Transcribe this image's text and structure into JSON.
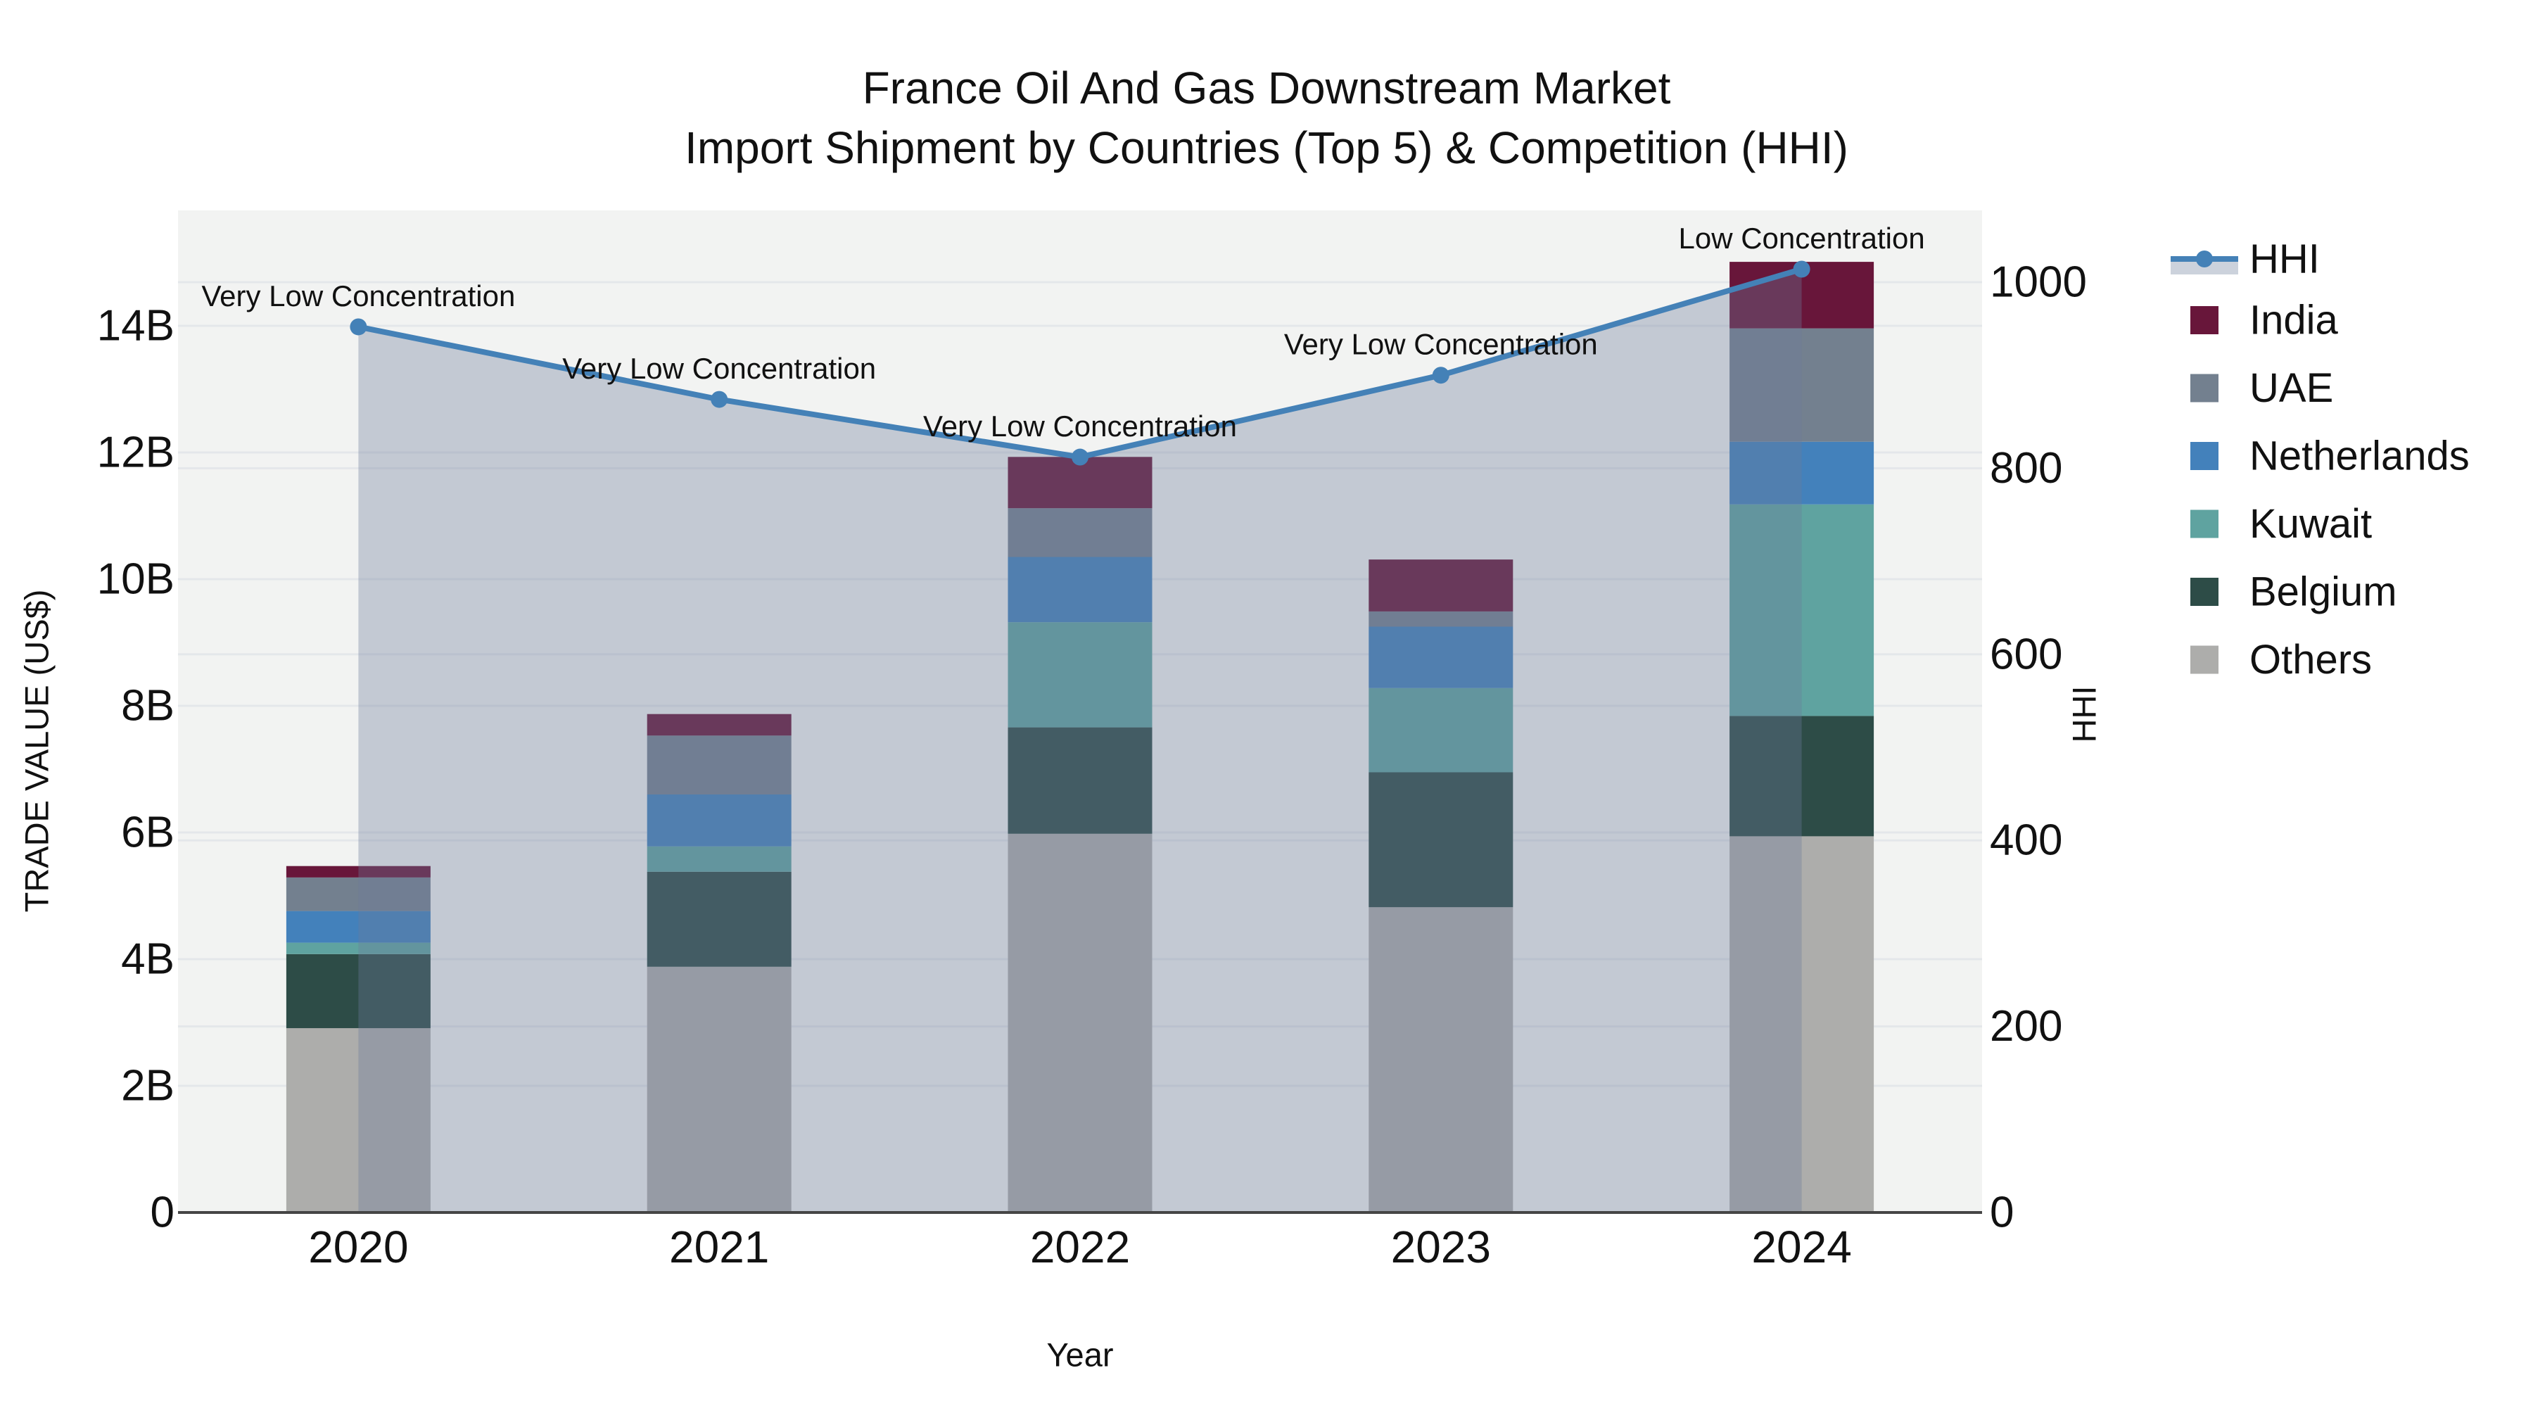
{
  "title": {
    "line1": "France Oil And Gas Downstream Market",
    "line2": "Import Shipment by Countries (Top 5) & Competition (HHI)"
  },
  "axis_titles": {
    "x": "Year",
    "y_left": "TRADE VALUE (US$)",
    "y_right": "HHI"
  },
  "legend": {
    "items": [
      "HHI",
      "India",
      "UAE",
      "Netherlands",
      "Kuwait",
      "Belgium",
      "Others"
    ]
  },
  "colors": {
    "hhi_line": "#4481b7",
    "hhi_area_fill": "rgba(108,124,155,0.35)",
    "hhi_legend_band": "#ccd2dc",
    "plot_background": "#f2f3f2",
    "gridline": "#e4e7ea",
    "axis_line": "#454545"
  },
  "chart_data": {
    "type": "bar",
    "subtype": "stacked-bars-with-line-overlay",
    "categories": [
      "2020",
      "2021",
      "2022",
      "2023",
      "2024"
    ],
    "bar_value_unit": "billions of US$",
    "series": [
      {
        "name": "India",
        "color": "#68163a",
        "values": [
          0.18,
          0.34,
          0.81,
          0.82,
          1.05
        ]
      },
      {
        "name": "UAE",
        "color": "#73808f",
        "values": [
          0.53,
          0.93,
          0.77,
          0.24,
          1.79
        ]
      },
      {
        "name": "Netherlands",
        "color": "#4381bb",
        "values": [
          0.5,
          0.82,
          1.03,
          0.97,
          0.99
        ]
      },
      {
        "name": "Kuwait",
        "color": "#5fa3a0",
        "values": [
          0.18,
          0.4,
          1.66,
          1.33,
          3.34
        ]
      },
      {
        "name": "Belgium",
        "color": "#2d4c47",
        "values": [
          1.17,
          1.5,
          1.68,
          2.13,
          1.9
        ]
      },
      {
        "name": "Others",
        "color": "#adadab",
        "values": [
          2.91,
          3.88,
          5.98,
          4.82,
          5.94
        ]
      }
    ],
    "stack_order_bottom_to_top": [
      "Others",
      "Belgium",
      "Kuwait",
      "Netherlands",
      "UAE",
      "India"
    ],
    "bar_totals": [
      5.47,
      7.87,
      11.93,
      10.31,
      15.01
    ],
    "line_series": {
      "name": "HHI",
      "axis": "right",
      "values": [
        952,
        874,
        812,
        900,
        1014
      ],
      "has_area_fill_to_zero": true
    },
    "annotations": [
      {
        "category": "2020",
        "text": "Very Low Concentration"
      },
      {
        "category": "2021",
        "text": "Very Low Concentration"
      },
      {
        "category": "2022",
        "text": "Very Low Concentration"
      },
      {
        "category": "2023",
        "text": "Very Low Concentration"
      },
      {
        "category": "2024",
        "text": "Low Concentration"
      }
    ],
    "y_left_axis": {
      "label": "TRADE VALUE (US$)",
      "tick_labels": [
        "0",
        "2B",
        "4B",
        "6B",
        "8B",
        "10B",
        "12B",
        "14B"
      ],
      "tick_values": [
        0,
        2,
        4,
        6,
        8,
        10,
        12,
        14
      ],
      "range": [
        0,
        15.82
      ]
    },
    "y_right_axis": {
      "label": "HHI",
      "tick_labels": [
        "0",
        "200",
        "400",
        "600",
        "800",
        "1000"
      ],
      "tick_values": [
        0,
        200,
        400,
        600,
        800,
        1000
      ],
      "range": [
        0,
        1077
      ]
    },
    "x_axis": {
      "label": "Year",
      "tick_labels": [
        "2020",
        "2021",
        "2022",
        "2023",
        "2024"
      ]
    },
    "grid": true,
    "legend_position": "right"
  }
}
